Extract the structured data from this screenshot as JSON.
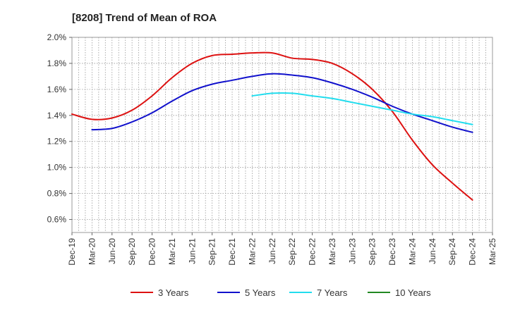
{
  "chart_data": {
    "type": "line",
    "title": "[8208]  Trend of Mean of ROA",
    "xlabel": "",
    "ylabel": "",
    "ylim": [
      0.5,
      2.0
    ],
    "y_ticks": [
      "0.6%",
      "0.8%",
      "1.0%",
      "1.2%",
      "1.4%",
      "1.6%",
      "1.8%",
      "2.0%"
    ],
    "y_tick_values": [
      0.6,
      0.8,
      1.0,
      1.2,
      1.4,
      1.6,
      1.8,
      2.0
    ],
    "x_ticks": [
      "Dec-19",
      "Mar-20",
      "Jun-20",
      "Sep-20",
      "Dec-20",
      "Mar-21",
      "Jun-21",
      "Sep-21",
      "Dec-21",
      "Mar-22",
      "Jun-22",
      "Sep-22",
      "Dec-22",
      "Mar-23",
      "Jun-23",
      "Sep-23",
      "Dec-23",
      "Mar-24",
      "Jun-24",
      "Sep-24",
      "Dec-24",
      "Mar-25"
    ],
    "grid": true,
    "legend_position": "bottom",
    "series": [
      {
        "name": "3 Years",
        "color": "#dd1111",
        "x": [
          0,
          1,
          2,
          3,
          4,
          5,
          6,
          7,
          8,
          9,
          10,
          11,
          12,
          13,
          14,
          15,
          16,
          17,
          18,
          19,
          20
        ],
        "values": [
          1.41,
          1.37,
          1.38,
          1.44,
          1.55,
          1.69,
          1.8,
          1.86,
          1.87,
          1.88,
          1.88,
          1.84,
          1.83,
          1.8,
          1.72,
          1.6,
          1.43,
          1.21,
          1.02,
          0.88,
          0.75
        ]
      },
      {
        "name": "5 Years",
        "color": "#1111cc",
        "x": [
          1,
          2,
          3,
          4,
          5,
          6,
          7,
          8,
          9,
          10,
          11,
          12,
          13,
          14,
          15,
          16,
          17,
          18,
          19,
          20
        ],
        "values": [
          1.29,
          1.3,
          1.35,
          1.42,
          1.51,
          1.59,
          1.64,
          1.67,
          1.7,
          1.72,
          1.71,
          1.69,
          1.65,
          1.6,
          1.54,
          1.47,
          1.41,
          1.36,
          1.31,
          1.27
        ]
      },
      {
        "name": "7 Years",
        "color": "#22ddee",
        "x": [
          9,
          10,
          11,
          12,
          13,
          14,
          15,
          16,
          17,
          18,
          19,
          20
        ],
        "values": [
          1.55,
          1.57,
          1.57,
          1.55,
          1.53,
          1.5,
          1.47,
          1.44,
          1.41,
          1.39,
          1.36,
          1.33
        ]
      },
      {
        "name": "10 Years",
        "color": "#228822",
        "x": [],
        "values": []
      }
    ]
  }
}
